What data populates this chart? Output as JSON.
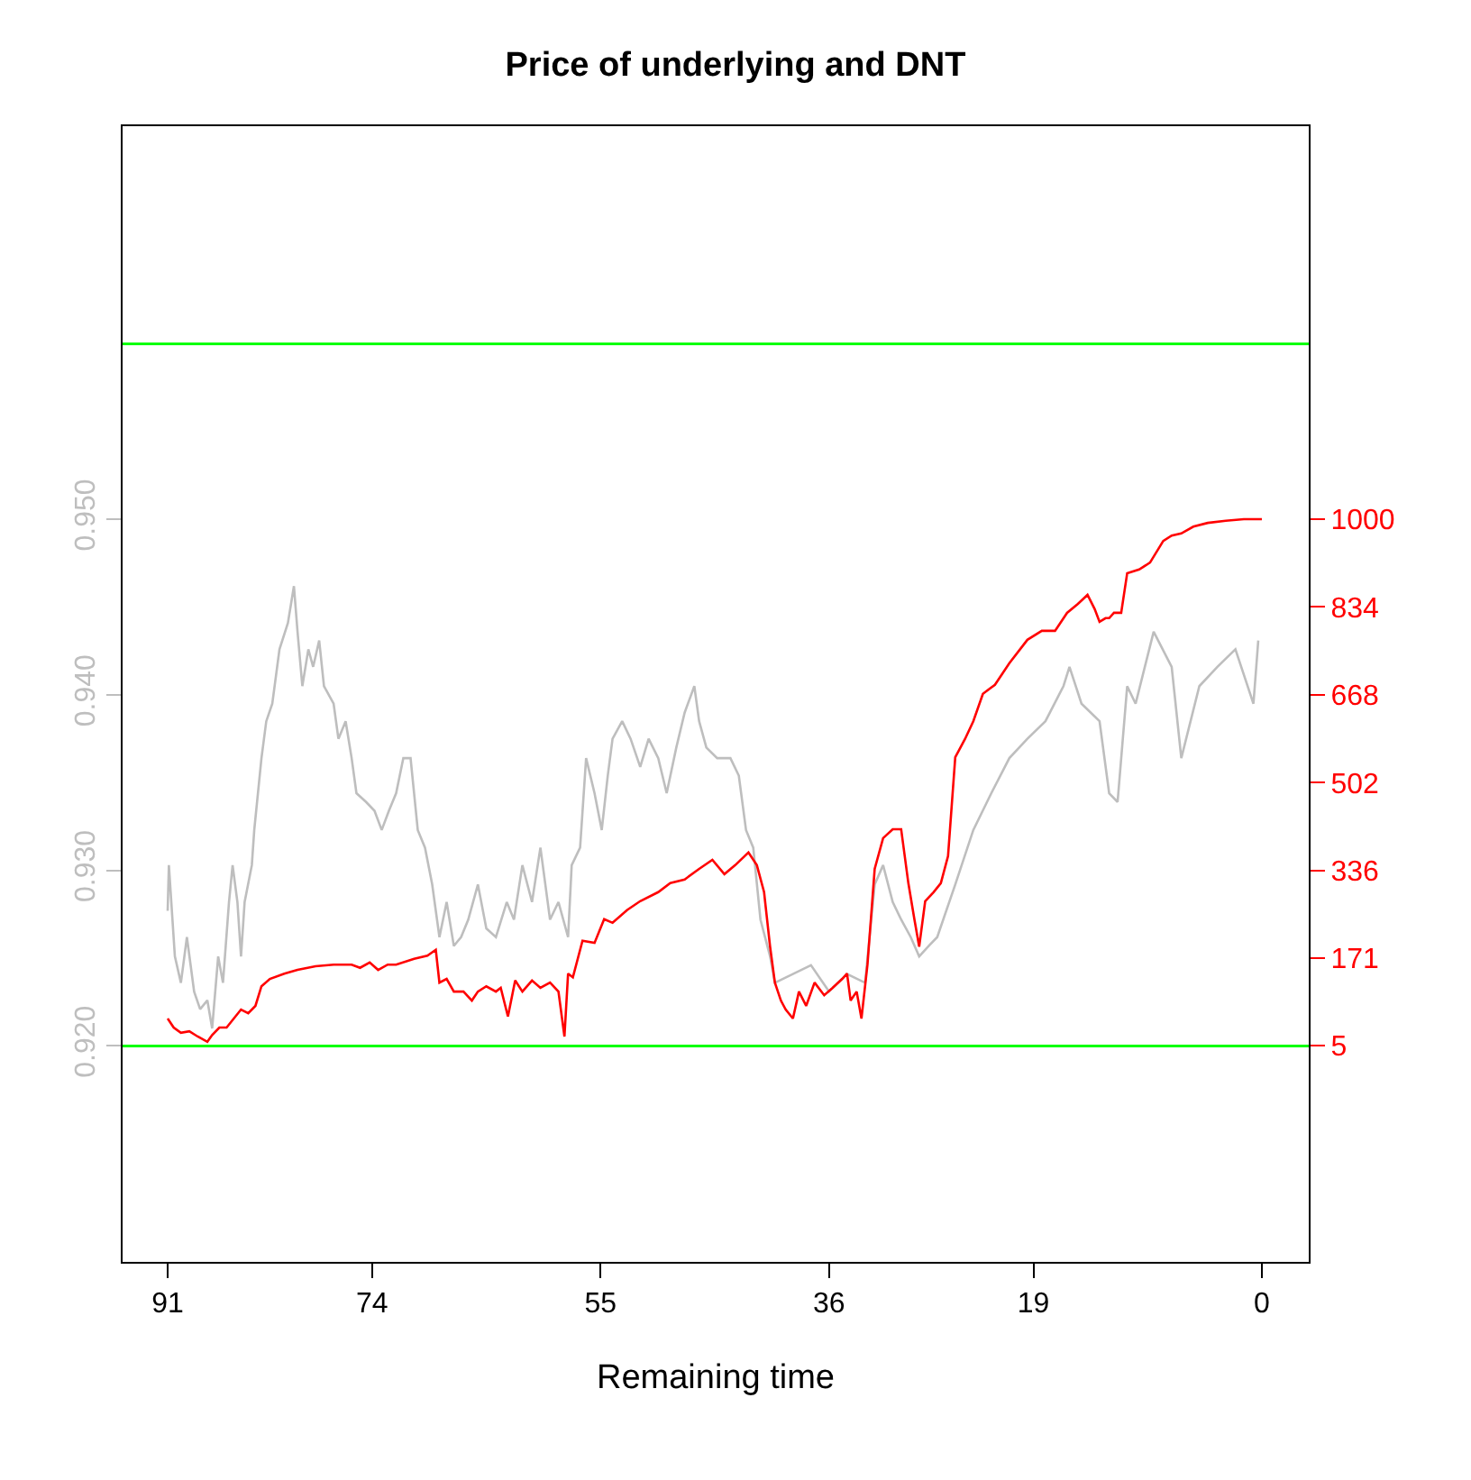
{
  "chart_data": {
    "type": "line",
    "title": "Price of underlying and DNT",
    "xlabel": "Remaining time",
    "xlim": [
      94.75,
      -3.9
    ],
    "xticks": [
      91,
      74,
      55,
      36,
      19,
      0
    ],
    "ylim": [
      0.9077,
      0.9724
    ],
    "yticks": [
      {
        "value": 0.92,
        "label": "0.920"
      },
      {
        "value": 0.93,
        "label": "0.930"
      },
      {
        "value": 0.94,
        "label": "0.940"
      },
      {
        "value": 0.95,
        "label": "0.950"
      }
    ],
    "y2lim": [
      -404,
      1743
    ],
    "y2ticks": [
      5,
      171,
      336,
      502,
      668,
      834,
      1000
    ],
    "ref_lines": [
      {
        "axis": "y",
        "value": 0.96,
        "color": "#00ff00"
      },
      {
        "axis": "y",
        "value": 0.92,
        "color": "#00ff00"
      }
    ],
    "series": [
      {
        "color": "#bebebe",
        "x": [
          91.0,
          90.9,
          90.4,
          89.9,
          89.4,
          88.8,
          88.3,
          87.7,
          87.3,
          86.8,
          86.4,
          85.9,
          85.6,
          85.2,
          84.9,
          84.6,
          84.0,
          83.8,
          83.2,
          82.8,
          82.3,
          81.7,
          81.0,
          80.5,
          80.2,
          79.8,
          79.3,
          78.9,
          78.4,
          78.0,
          77.2,
          76.8,
          76.2,
          75.7,
          75.3,
          74.5,
          73.8,
          73.2,
          72.6,
          72.0,
          71.4,
          70.8,
          70.2,
          69.6,
          69.0,
          68.4,
          67.8,
          67.2,
          66.6,
          66.0,
          65.2,
          64.5,
          63.7,
          62.8,
          62.2,
          61.5,
          60.7,
          60.0,
          59.2,
          58.5,
          57.7,
          57.4,
          56.7,
          56.2,
          55.5,
          54.9,
          54.4,
          54.0,
          53.2,
          52.5,
          51.7,
          51.0,
          50.2,
          49.5,
          48.7,
          48.0,
          47.2,
          46.8,
          46.2,
          45.3,
          44.2,
          43.5,
          42.9,
          42.3,
          41.7,
          40.9,
          40.5,
          39.0,
          37.5,
          36.0,
          34.5,
          33.0,
          32.2,
          31.5,
          30.7,
          30.0,
          29.2,
          28.5,
          27.7,
          27.0,
          25.5,
          24.0,
          22.5,
          21.0,
          19.5,
          18.0,
          16.5,
          16.0,
          15.0,
          13.5,
          12.7,
          12.0,
          11.2,
          10.5,
          9.0,
          7.5,
          6.7,
          5.2,
          3.7,
          2.2,
          0.7,
          0.3
        ],
        "values": [
          0.9277,
          0.9303,
          0.9251,
          0.9236,
          0.9262,
          0.9231,
          0.9221,
          0.9226,
          0.921,
          0.9251,
          0.9236,
          0.9282,
          0.9303,
          0.9282,
          0.9251,
          0.9282,
          0.9303,
          0.9323,
          0.9364,
          0.9385,
          0.9395,
          0.9426,
          0.9441,
          0.9462,
          0.9436,
          0.9405,
          0.9426,
          0.9416,
          0.9431,
          0.9405,
          0.9395,
          0.9375,
          0.9385,
          0.9364,
          0.9344,
          0.9339,
          0.9334,
          0.9323,
          0.9334,
          0.9344,
          0.9364,
          0.9364,
          0.9323,
          0.9313,
          0.9292,
          0.9262,
          0.9282,
          0.9257,
          0.9262,
          0.9272,
          0.9292,
          0.9267,
          0.9262,
          0.9282,
          0.9272,
          0.9303,
          0.9282,
          0.9313,
          0.9272,
          0.9282,
          0.9262,
          0.9303,
          0.9313,
          0.9364,
          0.9344,
          0.9323,
          0.9354,
          0.9375,
          0.9385,
          0.9375,
          0.9359,
          0.9375,
          0.9364,
          0.9344,
          0.937,
          0.939,
          0.9405,
          0.9385,
          0.937,
          0.9364,
          0.9364,
          0.9354,
          0.9323,
          0.9313,
          0.9272,
          0.9251,
          0.9236,
          0.9241,
          0.9246,
          0.9231,
          0.9241,
          0.9236,
          0.9292,
          0.9303,
          0.9282,
          0.9272,
          0.9262,
          0.9251,
          0.9257,
          0.9262,
          0.9292,
          0.9323,
          0.9344,
          0.9364,
          0.9375,
          0.9385,
          0.9405,
          0.9416,
          0.9395,
          0.9385,
          0.9344,
          0.9339,
          0.9405,
          0.9395,
          0.9436,
          0.9416,
          0.9364,
          0.9405,
          0.9416,
          0.9426,
          0.9395,
          0.9431
        ]
      },
      {
        "color": "#ff0000",
        "axis": "y2",
        "x": [
          91.0,
          90.5,
          89.9,
          89.2,
          88.5,
          87.7,
          87.3,
          86.7,
          86.1,
          85.5,
          84.9,
          84.3,
          83.7,
          83.2,
          82.5,
          81.3,
          80.2,
          78.7,
          77.2,
          75.7,
          75.0,
          74.2,
          73.5,
          72.7,
          72.0,
          70.5,
          69.4,
          68.7,
          68.4,
          67.8,
          67.2,
          66.4,
          65.7,
          65.2,
          64.5,
          63.7,
          63.3,
          62.7,
          62.1,
          61.5,
          60.7,
          60.0,
          59.2,
          58.5,
          58.0,
          57.7,
          57.3,
          56.5,
          55.5,
          54.7,
          54.0,
          52.8,
          51.7,
          50.2,
          49.2,
          48.0,
          46.8,
          45.7,
          44.7,
          43.8,
          42.7,
          42.0,
          41.4,
          40.9,
          40.5,
          40.0,
          39.6,
          39.0,
          38.5,
          37.9,
          37.2,
          36.4,
          35.7,
          34.9,
          34.5,
          34.2,
          33.7,
          33.3,
          32.8,
          32.2,
          31.5,
          30.7,
          30.0,
          29.4,
          28.9,
          28.5,
          28.0,
          27.3,
          26.7,
          26.1,
          25.5,
          24.7,
          24.0,
          23.2,
          22.2,
          21.0,
          19.5,
          18.3,
          17.2,
          16.2,
          15.3,
          14.5,
          13.9,
          13.5,
          13.0,
          12.7,
          12.3,
          11.7,
          11.2,
          10.2,
          9.3,
          8.2,
          7.5,
          6.7,
          5.7,
          4.5,
          3.0,
          1.5,
          0
        ],
        "values": [
          56,
          39,
          29,
          32,
          22,
          12,
          25,
          39,
          39,
          56,
          73,
          66,
          80,
          117,
          131,
          141,
          148,
          155,
          158,
          158,
          152,
          162,
          148,
          158,
          158,
          169,
          175,
          186,
          124,
          131,
          107,
          107,
          90,
          107,
          117,
          107,
          114,
          60,
          128,
          107,
          128,
          114,
          124,
          107,
          22,
          141,
          134,
          203,
          199,
          244,
          237,
          261,
          278,
          295,
          312,
          319,
          339,
          356,
          329,
          346,
          370,
          346,
          295,
          192,
          124,
          90,
          73,
          56,
          107,
          80,
          124,
          100,
          114,
          131,
          141,
          90,
          107,
          56,
          158,
          339,
          397,
          414,
          414,
          312,
          244,
          192,
          278,
          295,
          312,
          363,
          550,
          584,
          618,
          670,
          687,
          728,
          772,
          789,
          789,
          823,
          840,
          857,
          830,
          806,
          813,
          813,
          823,
          823,
          898,
          905,
          918,
          959,
          969,
          973,
          986,
          993,
          997,
          1000,
          1000
        ]
      }
    ]
  }
}
